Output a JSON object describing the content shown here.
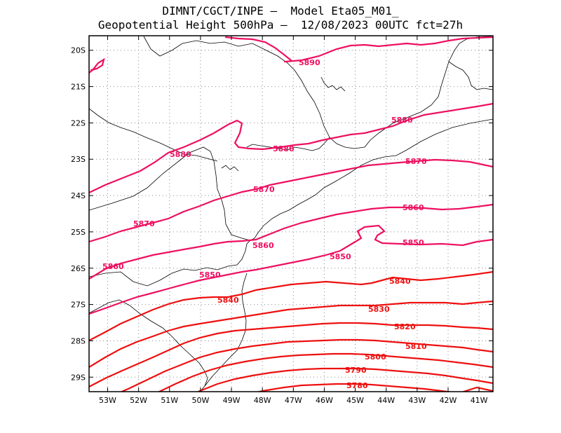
{
  "header": {
    "line1": "DIMNT/CGCT/INPE —  Model Eta05_M01_",
    "line2": "Geopotential Height 500hPa —  12/08/2023 00UTC fct=27h"
  },
  "axes": {
    "x_ticks": [
      "53W",
      "52W",
      "51W",
      "50W",
      "49W",
      "48W",
      "47W",
      "46W",
      "45W",
      "44W",
      "43W",
      "42W",
      "41W"
    ],
    "y_ticks": [
      "20S",
      "21S",
      "22S",
      "23S",
      "24S",
      "25S",
      "26S",
      "27S",
      "28S",
      "29S"
    ]
  },
  "colors": {
    "magenta": "#ee1060",
    "red": "#ee1010",
    "coast": "#000000",
    "grid": "#888888"
  },
  "chart_data": {
    "type": "contour",
    "variable": "Geopotential Height 500hPa",
    "lon_range": [
      -53.6,
      -40.55
    ],
    "lat_range": [
      -29.4,
      -19.6
    ],
    "contours": [
      {
        "level": "5890",
        "label": "5890"
      },
      {
        "level": "5880",
        "labels": [
          "5880",
          "5880",
          "5880"
        ]
      },
      {
        "level": "5870",
        "labels": [
          "5870",
          "5870",
          "5870"
        ]
      },
      {
        "level": "5860",
        "labels": [
          "5860",
          "5860",
          "5860"
        ]
      },
      {
        "level": "5850",
        "labels": [
          "5850",
          "5850",
          "5850"
        ]
      },
      {
        "level": "5840",
        "labels": [
          "5840",
          "5840"
        ]
      },
      {
        "level": "5830",
        "label": "5830"
      },
      {
        "level": "5820",
        "label": "5820"
      },
      {
        "level": "5810",
        "label": "5810"
      },
      {
        "level": "5800",
        "label": "5800"
      },
      {
        "level": "5790",
        "label": "5790"
      },
      {
        "level": "5780",
        "label": "5780"
      }
    ]
  }
}
